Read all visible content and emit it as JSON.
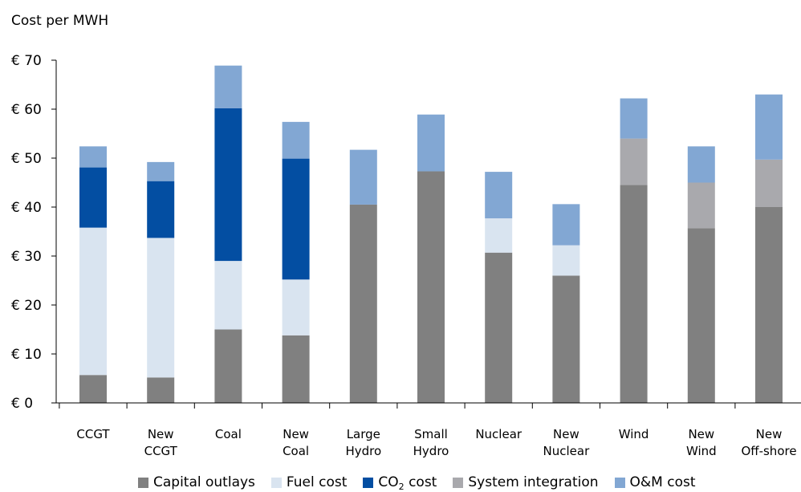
{
  "chart_data": {
    "type": "bar",
    "stacked": true,
    "ylabel": "Cost per MWH",
    "ytick_labels": [
      "€ 0",
      "€ 10",
      "€ 20",
      "€ 30",
      "€ 40",
      "€ 50",
      "€ 60",
      "€ 70"
    ],
    "ylim": [
      0,
      70
    ],
    "categories": [
      [
        "CCGT"
      ],
      [
        "New",
        "CCGT"
      ],
      [
        "Coal"
      ],
      [
        "New",
        "Coal"
      ],
      [
        "Large",
        "Hydro"
      ],
      [
        "Small",
        "Hydro"
      ],
      [
        "Nuclear"
      ],
      [
        "New",
        "Nuclear"
      ],
      [
        "Wind"
      ],
      [
        "New",
        "Wind"
      ],
      [
        "New",
        "Off-shore"
      ]
    ],
    "series": [
      {
        "name": "Capital outlays",
        "color": "#808080",
        "values": [
          5.7,
          5.2,
          15.0,
          13.8,
          40.5,
          47.3,
          30.7,
          26.0,
          44.5,
          35.7,
          40.0
        ]
      },
      {
        "name": "Fuel cost",
        "color": "#d9e4f0",
        "values": [
          30.1,
          28.5,
          14.0,
          11.4,
          0,
          0,
          7.0,
          6.2,
          0,
          0,
          0
        ]
      },
      {
        "name": "CO₂ cost",
        "name_main": "CO",
        "name_sub": "2",
        "name_rest": " cost",
        "color": "#034ea2",
        "values": [
          12.3,
          11.6,
          31.2,
          24.7,
          0,
          0,
          0,
          0,
          0,
          0,
          0
        ]
      },
      {
        "name": "System integration",
        "color": "#a9a9ad",
        "values": [
          0,
          0,
          0,
          0,
          0,
          0,
          0,
          0,
          9.5,
          9.3,
          9.7
        ]
      },
      {
        "name": "O&M cost",
        "color": "#82a7d3",
        "values": [
          4.3,
          3.9,
          8.7,
          7.5,
          11.2,
          11.6,
          9.5,
          8.4,
          8.2,
          7.4,
          13.3
        ]
      }
    ],
    "legend_position": "bottom",
    "grid": false
  }
}
